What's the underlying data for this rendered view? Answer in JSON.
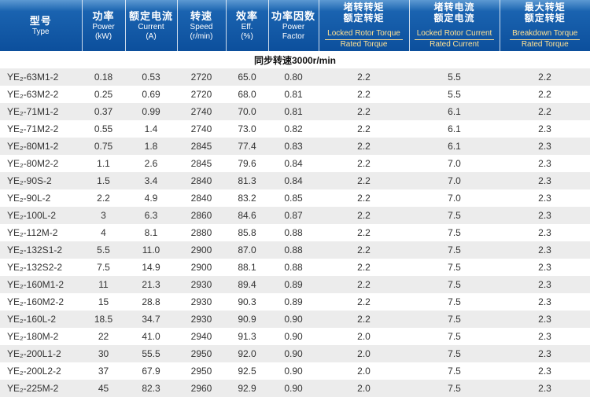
{
  "table": {
    "sync_row_label": "同步转速3000r/min",
    "colors": {
      "header_top": "#5d9ad2",
      "header_mid": "#1a63b0",
      "header_bottom": "#0c4f9c",
      "accent_yellow": "#ffe193",
      "stripe": "#ececec",
      "text_dark": "#333333"
    },
    "header": {
      "columns": [
        {
          "cn": "型号",
          "en1": "Type"
        },
        {
          "cn": "功率",
          "en1": "Power",
          "en2": "(kW)"
        },
        {
          "cn": "额定电流",
          "en1": "Current",
          "en2": "(A)"
        },
        {
          "cn": "转速",
          "en1": "Speed",
          "en2": "(r/min)"
        },
        {
          "cn": "效率",
          "en1": "Eff.",
          "en2": "(%)"
        },
        {
          "cn": "功率因数",
          "en1": "Power",
          "en2": "Factor"
        },
        {
          "cn_top": "堵转转矩",
          "cn_bottom": "额定转矩",
          "en_top": "Locked Rotor Torque",
          "en_bottom": "Rated Torque"
        },
        {
          "cn_top": "堵转电流",
          "cn_bottom": "额定电流",
          "en_top": "Locked Rotor Current",
          "en_bottom": "Rated Current"
        },
        {
          "cn_top": "最大转矩",
          "cn_bottom": "额定转矩",
          "en_top": "Breakdown Torque",
          "en_bottom": "Rated Torque"
        }
      ]
    },
    "rows": [
      [
        "YE₂-63M1-2",
        "0.18",
        "0.53",
        "2720",
        "65.0",
        "0.80",
        "2.2",
        "5.5",
        "2.2"
      ],
      [
        "YE₂-63M2-2",
        "0.25",
        "0.69",
        "2720",
        "68.0",
        "0.81",
        "2.2",
        "5.5",
        "2.2"
      ],
      [
        "YE₂-71M1-2",
        "0.37",
        "0.99",
        "2740",
        "70.0",
        "0.81",
        "2.2",
        "6.1",
        "2.2"
      ],
      [
        "YE₂-71M2-2",
        "0.55",
        "1.4",
        "2740",
        "73.0",
        "0.82",
        "2.2",
        "6.1",
        "2.3"
      ],
      [
        "YE₂-80M1-2",
        "0.75",
        "1.8",
        "2845",
        "77.4",
        "0.83",
        "2.2",
        "6.1",
        "2.3"
      ],
      [
        "YE₂-80M2-2",
        "1.1",
        "2.6",
        "2845",
        "79.6",
        "0.84",
        "2.2",
        "7.0",
        "2.3"
      ],
      [
        "YE₂-90S-2",
        "1.5",
        "3.4",
        "2840",
        "81.3",
        "0.84",
        "2.2",
        "7.0",
        "2.3"
      ],
      [
        "YE₂-90L-2",
        "2.2",
        "4.9",
        "2840",
        "83.2",
        "0.85",
        "2.2",
        "7.0",
        "2.3"
      ],
      [
        "YE₂-100L-2",
        "3",
        "6.3",
        "2860",
        "84.6",
        "0.87",
        "2.2",
        "7.5",
        "2.3"
      ],
      [
        "YE₂-112M-2",
        "4",
        "8.1",
        "2880",
        "85.8",
        "0.88",
        "2.2",
        "7.5",
        "2.3"
      ],
      [
        "YE₂-132S1-2",
        "5.5",
        "11.0",
        "2900",
        "87.0",
        "0.88",
        "2.2",
        "7.5",
        "2.3"
      ],
      [
        "YE₂-132S2-2",
        "7.5",
        "14.9",
        "2900",
        "88.1",
        "0.88",
        "2.2",
        "7.5",
        "2.3"
      ],
      [
        "YE₂-160M1-2",
        "11",
        "21.3",
        "2930",
        "89.4",
        "0.89",
        "2.2",
        "7.5",
        "2.3"
      ],
      [
        "YE₂-160M2-2",
        "15",
        "28.8",
        "2930",
        "90.3",
        "0.89",
        "2.2",
        "7.5",
        "2.3"
      ],
      [
        "YE₂-160L-2",
        "18.5",
        "34.7",
        "2930",
        "90.9",
        "0.90",
        "2.2",
        "7.5",
        "2.3"
      ],
      [
        "YE₂-180M-2",
        "22",
        "41.0",
        "2940",
        "91.3",
        "0.90",
        "2.0",
        "7.5",
        "2.3"
      ],
      [
        "YE₂-200L1-2",
        "30",
        "55.5",
        "2950",
        "92.0",
        "0.90",
        "2.0",
        "7.5",
        "2.3"
      ],
      [
        "YE₂-200L2-2",
        "37",
        "67.9",
        "2950",
        "92.5",
        "0.90",
        "2.0",
        "7.5",
        "2.3"
      ],
      [
        "YE₂-225M-2",
        "45",
        "82.3",
        "2960",
        "92.9",
        "0.90",
        "2.0",
        "7.5",
        "2.3"
      ]
    ]
  }
}
